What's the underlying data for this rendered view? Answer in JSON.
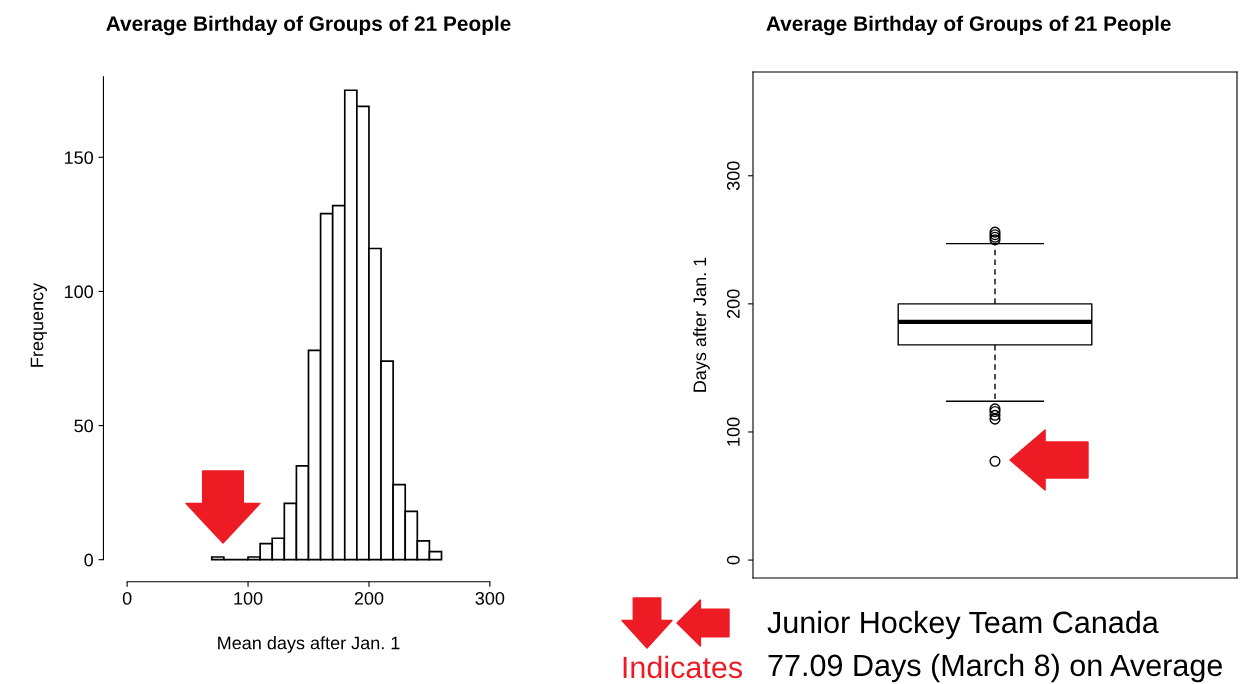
{
  "chart_data": [
    {
      "type": "histogram",
      "title": "Average Birthday of Groups of 21 People",
      "xlabel": "Mean days after Jan. 1",
      "ylabel": "Frequency",
      "bins": [
        70,
        80,
        90,
        100,
        110,
        120,
        130,
        140,
        150,
        160,
        170,
        180,
        190,
        200,
        210,
        220,
        230,
        240,
        250,
        260
      ],
      "values": [
        1,
        0,
        0,
        1,
        6,
        8,
        21,
        35,
        78,
        129,
        132,
        175,
        169,
        116,
        74,
        28,
        18,
        7,
        3
      ],
      "xlim": [
        0,
        300
      ],
      "xticks": [
        0,
        100,
        200,
        300
      ],
      "ylim": [
        0,
        180
      ],
      "yticks": [
        0,
        50,
        100,
        150
      ],
      "grid": false
    },
    {
      "type": "box",
      "title": "Average Birthday of Groups of 21 People",
      "ylabel": "Days after Jan. 1",
      "categories": [
        null
      ],
      "boxes": [
        {
          "low": 124,
          "q1": 168,
          "median": 186,
          "q3": 200,
          "high": 247,
          "outliers": [
            250,
            252,
            254,
            256,
            118,
            116,
            113,
            110,
            77.09
          ]
        }
      ],
      "ylim": [
        -14,
        381
      ],
      "yticks": [
        0,
        100,
        200,
        300
      ],
      "grid": false,
      "annotations": [
        "Indicates",
        "Junior Hockey Team Canada",
        "77.09 Days (March 8) on Average"
      ]
    }
  ]
}
